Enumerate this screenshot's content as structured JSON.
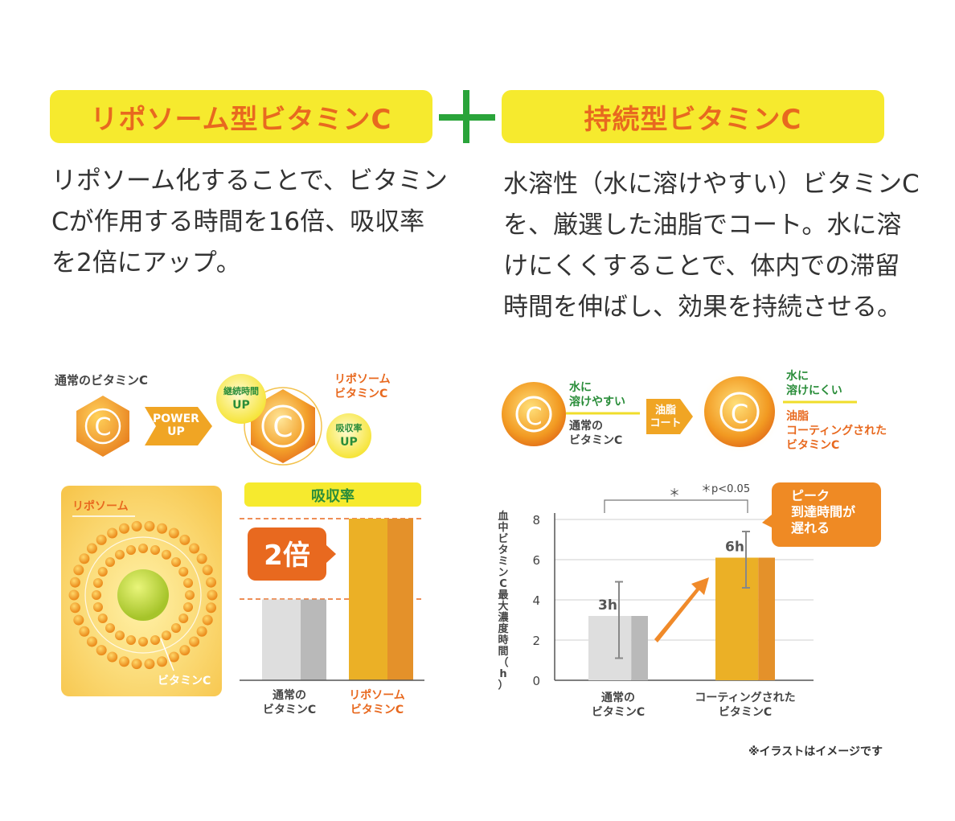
{
  "left": {
    "pill": "リポソーム型ビタミンC",
    "desc": [
      "リポソーム化することで、ビタミン",
      "Cが作用する時間を16倍、吸収率",
      "を2倍にアップ。"
    ],
    "diagram": {
      "normal_label": "通常のビタミンC",
      "c_letter": "C",
      "power_up": [
        "POWER",
        "UP"
      ],
      "badge_duration": [
        "継続時間",
        "UP"
      ],
      "badge_absorb": [
        "吸収率",
        "UP"
      ],
      "liposome_label": [
        "リポソーム",
        "ビタミンC"
      ]
    },
    "illustration": {
      "liposome": "リポソーム",
      "vitamin_c": "ビタミンC"
    }
  },
  "right": {
    "pill": "持続型ビタミンC",
    "desc": [
      "水溶性（水に溶けやすい）ビタミンC",
      "を、厳選した油脂でコート。水に溶",
      "けにくくすることで、体内での滞留",
      "時間を伸ばし、効果を持続させる。"
    ],
    "diagram": {
      "c_letter": "C",
      "water_soluble": [
        "水に",
        "溶けやすい"
      ],
      "normal_label": [
        "通常の",
        "ビタミンC"
      ],
      "arrow_label": [
        "油脂",
        "コート"
      ],
      "water_resistant": [
        "水に",
        "溶けにくい"
      ],
      "coated_label": [
        "油脂",
        "コーティングされた",
        "ビタミンC"
      ]
    },
    "callout": [
      "ピーク",
      "到達時間が",
      "遅れる"
    ]
  },
  "footnote": "※イラストはイメージです",
  "colors": {
    "accent": "#e8691f",
    "yellow": "#f6ea2e",
    "green": "#2aa43a",
    "gray": "#dcdcdc",
    "gold": "#ebb026"
  },
  "chart_data": [
    {
      "type": "bar",
      "title": "吸収率",
      "categories": [
        [
          "通常の",
          "ビタミンC"
        ],
        [
          "リポソーム",
          "ビタミンC"
        ]
      ],
      "values": [
        1,
        2
      ],
      "annotation": "2倍"
    },
    {
      "type": "bar",
      "ylabel": "血中ビタミンC最大濃度時間（h）",
      "categories": [
        [
          "通常の",
          "ビタミンC"
        ],
        [
          "コーティングされた",
          "ビタミンC"
        ]
      ],
      "values": [
        3.2,
        6.1
      ],
      "value_labels": [
        "3h",
        "6h"
      ],
      "error_low": [
        1.1,
        4.6
      ],
      "error_high": [
        4.9,
        7.4
      ],
      "yticks": [
        "0",
        "2",
        "4",
        "6",
        "8"
      ],
      "ylim": [
        0,
        8
      ],
      "significance": "＊",
      "significance_note": "＊p<0.05"
    }
  ]
}
